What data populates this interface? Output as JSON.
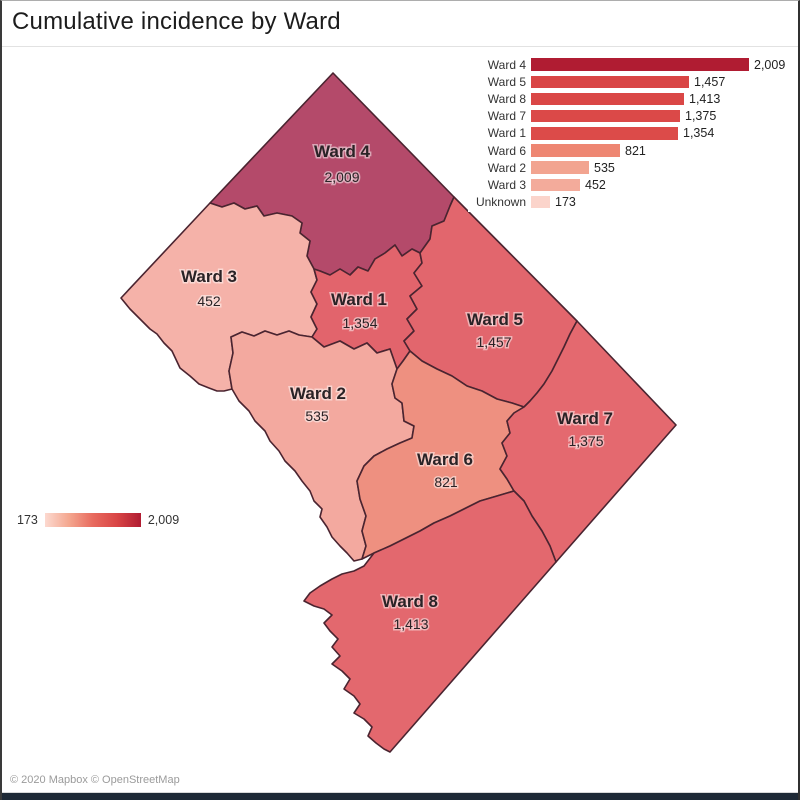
{
  "title": "Cumulative incidence by Ward",
  "chart_data": {
    "type": "bar",
    "title": "Cumulative incidence by Ward",
    "subtype": "choropleth map of Washington DC wards with ranked bar legend",
    "categories": [
      "Ward 4",
      "Ward 5",
      "Ward 8",
      "Ward 7",
      "Ward 1",
      "Ward 6",
      "Ward 2",
      "Ward 3",
      "Unknown"
    ],
    "values": [
      2009,
      1457,
      1413,
      1375,
      1354,
      821,
      535,
      452,
      173
    ],
    "value_labels": [
      "2,009",
      "1,457",
      "1,413",
      "1,375",
      "1,354",
      "821",
      "535",
      "452",
      "173"
    ],
    "xlim": [
      0,
      2009
    ],
    "legend_position": "top-right",
    "grid": false,
    "color_scale": {
      "min": 173,
      "max": 2009,
      "min_label": "173",
      "max_label": "2,009",
      "min_color": "#fcd9d0",
      "max_color": "#b01c32"
    }
  },
  "bar_legend": {
    "max": 2009,
    "items": [
      {
        "label": "Ward 4",
        "value": "2,009",
        "num": 2009,
        "color": "#b01c32"
      },
      {
        "label": "Ward 5",
        "value": "1,457",
        "num": 1457,
        "color": "#d94545"
      },
      {
        "label": "Ward 8",
        "value": "1,413",
        "num": 1413,
        "color": "#da4746"
      },
      {
        "label": "Ward 7",
        "value": "1,375",
        "num": 1375,
        "color": "#db4948"
      },
      {
        "label": "Ward 1",
        "value": "1,354",
        "num": 1354,
        "color": "#dc4b49"
      },
      {
        "label": "Ward 6",
        "value": "821",
        "num": 821,
        "color": "#ee8672"
      },
      {
        "label": "Ward 2",
        "value": "535",
        "num": 535,
        "color": "#f2a490"
      },
      {
        "label": "Ward 3",
        "value": "452",
        "num": 452,
        "color": "#f3ab9b"
      },
      {
        "label": "Unknown",
        "value": "173",
        "num": 173,
        "color": "#fbd4cb"
      }
    ]
  },
  "map": {
    "regions": [
      {
        "name": "Ward 4",
        "value": "2,009",
        "fill": "#b44a6a"
      },
      {
        "name": "Ward 3",
        "value": "452",
        "fill": "#f5b2a9"
      },
      {
        "name": "Ward 1",
        "value": "1,354",
        "fill": "#e2646c"
      },
      {
        "name": "Ward 5",
        "value": "1,457",
        "fill": "#e2666d"
      },
      {
        "name": "Ward 2",
        "value": "535",
        "fill": "#f3a99f"
      },
      {
        "name": "Ward 6",
        "value": "821",
        "fill": "#ee9080"
      },
      {
        "name": "Ward 7",
        "value": "1,375",
        "fill": "#e4696f"
      },
      {
        "name": "Ward 8",
        "value": "1,413",
        "fill": "#e3686e"
      }
    ]
  },
  "scale_legend": {
    "min_label": "173",
    "max_label": "2,009",
    "colors": [
      "#fcd9d0",
      "#f4a78f",
      "#e86a5e",
      "#d94545",
      "#b01c32"
    ]
  },
  "attribution": "© 2020 Mapbox © OpenStreetMap"
}
